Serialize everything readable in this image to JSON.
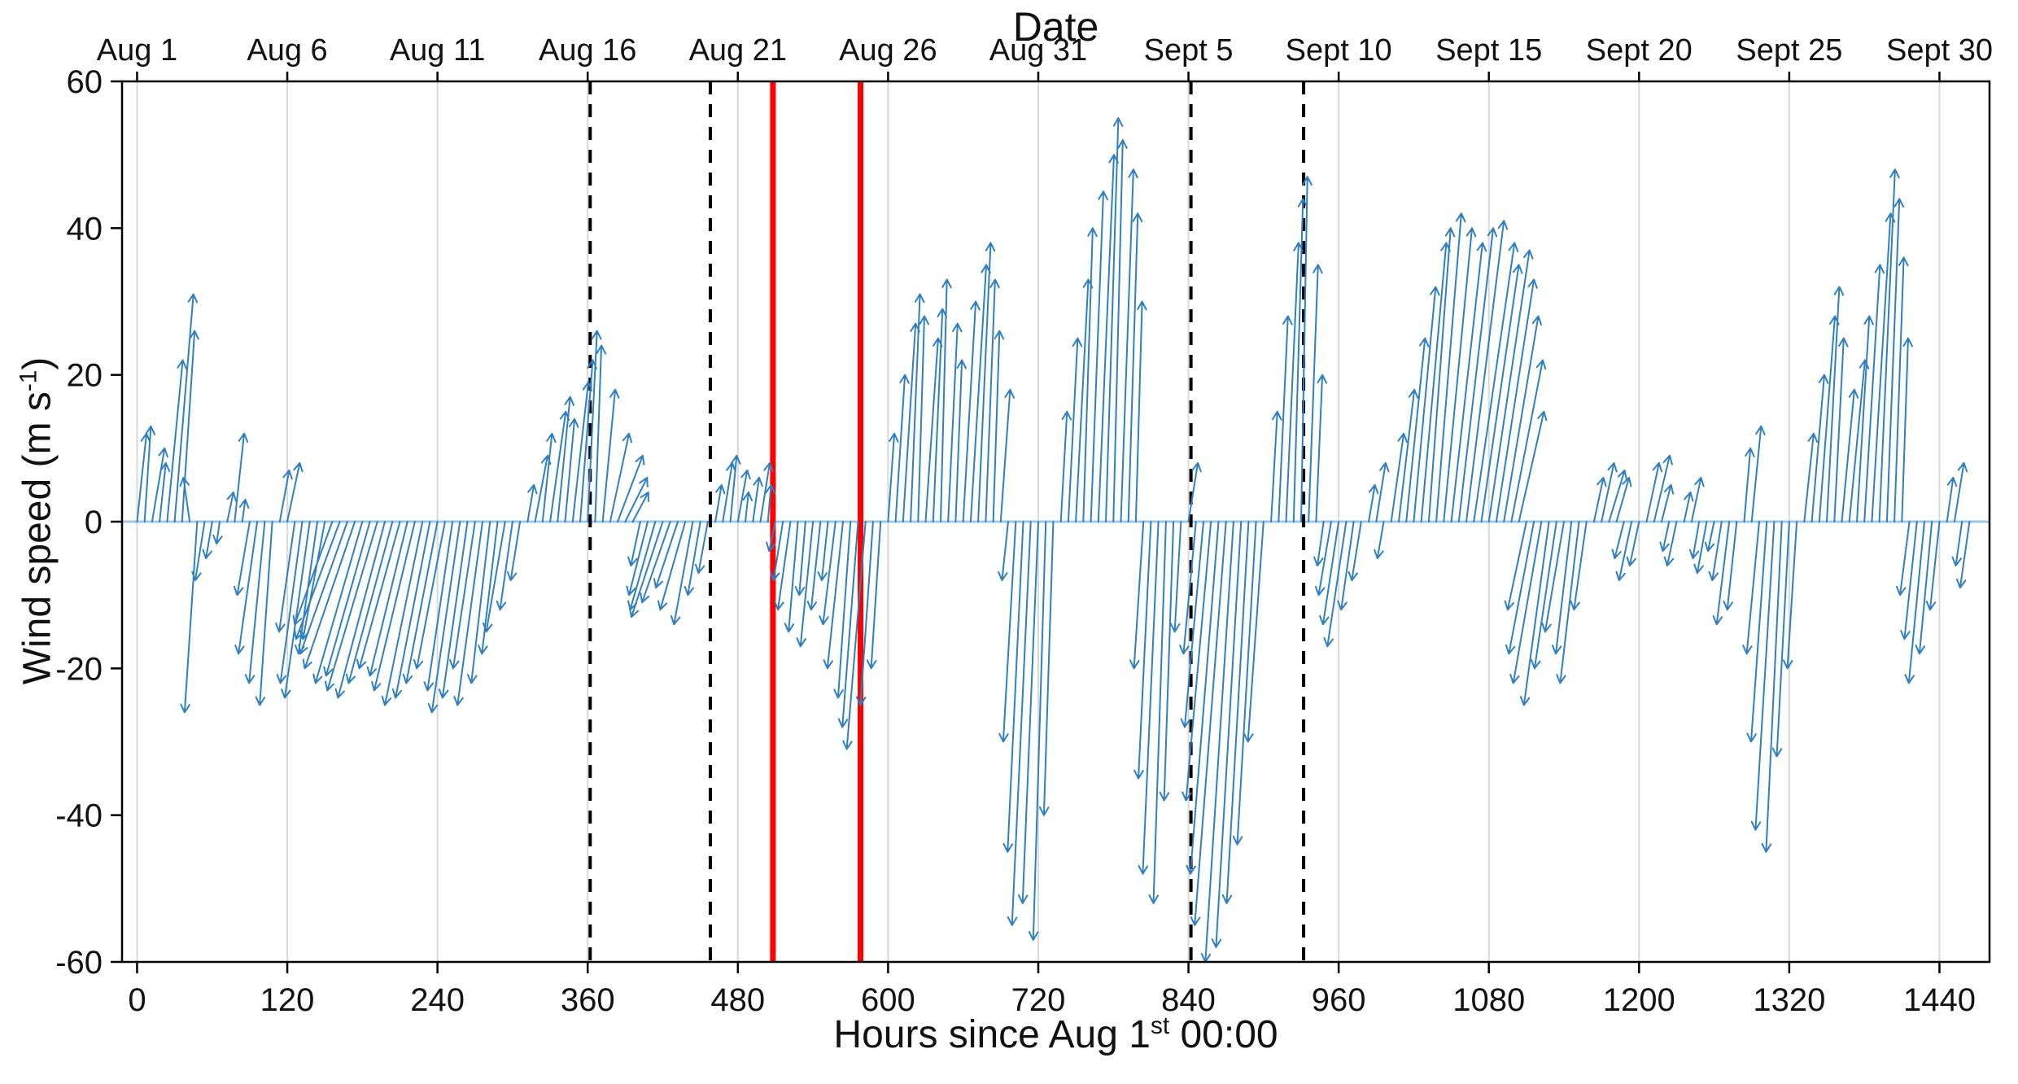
{
  "chart_data": {
    "type": "quiver",
    "title": "Date",
    "xlabel": "Hours since Aug 1st 00:00",
    "ylabel": "Wind speed (m s-1)",
    "labels": {
      "title_top": "Date",
      "xlabel_parts": {
        "pre": "Hours since Aug 1",
        "sup": "st",
        "post": " 00:00"
      },
      "ylabel_parts": {
        "pre": "Wind speed (m s",
        "sup": "-1",
        "post": ")"
      }
    },
    "xlim": [
      -12,
      1480
    ],
    "ylim": [
      -60,
      60
    ],
    "y_ticks": [
      -60,
      -40,
      -20,
      0,
      20,
      40,
      60
    ],
    "x_ticks_bottom": [
      0,
      120,
      240,
      360,
      480,
      600,
      720,
      840,
      960,
      1080,
      1200,
      1320,
      1440
    ],
    "x_ticks_top": [
      {
        "hour": 0,
        "label": "Aug 1"
      },
      {
        "hour": 120,
        "label": "Aug 6"
      },
      {
        "hour": 240,
        "label": "Aug 11"
      },
      {
        "hour": 360,
        "label": "Aug 16"
      },
      {
        "hour": 480,
        "label": "Aug 21"
      },
      {
        "hour": 600,
        "label": "Aug 26"
      },
      {
        "hour": 720,
        "label": "Aug 31"
      },
      {
        "hour": 840,
        "label": "Sept 5"
      },
      {
        "hour": 960,
        "label": "Sept 10"
      },
      {
        "hour": 1080,
        "label": "Sept 15"
      },
      {
        "hour": 1200,
        "label": "Sept 20"
      },
      {
        "hour": 1320,
        "label": "Sept 25"
      },
      {
        "hour": 1440,
        "label": "Sept 30"
      }
    ],
    "grid": {
      "vertical": true,
      "color": "#d9d9d9"
    },
    "axis_color": "#000000",
    "vector_color": "#2f7fc1",
    "baseline_color": "#9ec8e8",
    "u_scale_hours_per_ms": 2.5,
    "reference_lines": [
      {
        "x": 362,
        "style": "dashed",
        "color": "#000000"
      },
      {
        "x": 458,
        "style": "dashed",
        "color": "#000000"
      },
      {
        "x": 508,
        "style": "solid",
        "color": "#ff0000"
      },
      {
        "x": 578,
        "style": "solid",
        "color": "#ff0000"
      },
      {
        "x": 842,
        "style": "dashed",
        "color": "#000000"
      },
      {
        "x": 932,
        "style": "dashed",
        "color": "#000000"
      }
    ],
    "vectors": [
      [
        0,
        3,
        12
      ],
      [
        6,
        2,
        13
      ],
      [
        12,
        4,
        10
      ],
      [
        18,
        2,
        8
      ],
      [
        24,
        5,
        22
      ],
      [
        30,
        6,
        31
      ],
      [
        36,
        4,
        26
      ],
      [
        42,
        -2,
        6
      ],
      [
        48,
        -4,
        -26
      ],
      [
        54,
        -3,
        -8
      ],
      [
        60,
        -2,
        -5
      ],
      [
        66,
        -1,
        -3
      ],
      [
        72,
        2,
        4
      ],
      [
        78,
        3,
        12
      ],
      [
        84,
        1,
        3
      ],
      [
        90,
        -4,
        -10
      ],
      [
        96,
        -6,
        -18
      ],
      [
        102,
        -5,
        -22
      ],
      [
        108,
        -4,
        -25
      ],
      [
        114,
        3,
        7
      ],
      [
        120,
        4,
        8
      ],
      [
        126,
        -5,
        -15
      ],
      [
        132,
        -7,
        -22
      ],
      [
        138,
        -8,
        -24
      ],
      [
        144,
        -6,
        -18
      ],
      [
        150,
        -7,
        -16
      ],
      [
        156,
        -12,
        -14
      ],
      [
        162,
        -14,
        -16
      ],
      [
        168,
        -15,
        -18
      ],
      [
        174,
        -16,
        -20
      ],
      [
        180,
        -15,
        -22
      ],
      [
        186,
        -14,
        -21
      ],
      [
        192,
        -16,
        -23
      ],
      [
        198,
        -15,
        -24
      ],
      [
        204,
        -14,
        -22
      ],
      [
        210,
        -13,
        -20
      ],
      [
        216,
        -12,
        -21
      ],
      [
        222,
        -13,
        -23
      ],
      [
        228,
        -12,
        -25
      ],
      [
        234,
        -11,
        -24
      ],
      [
        240,
        -10,
        -22
      ],
      [
        246,
        -9,
        -20
      ],
      [
        252,
        -8,
        -23
      ],
      [
        258,
        -9,
        -26
      ],
      [
        264,
        -8,
        -24
      ],
      [
        270,
        -7,
        -20
      ],
      [
        276,
        -8,
        -25
      ],
      [
        282,
        -6,
        -22
      ],
      [
        288,
        -5,
        -18
      ],
      [
        294,
        -6,
        -15
      ],
      [
        300,
        -4,
        -12
      ],
      [
        306,
        -3,
        -8
      ],
      [
        312,
        2,
        5
      ],
      [
        318,
        4,
        9
      ],
      [
        324,
        3,
        12
      ],
      [
        330,
        5,
        15
      ],
      [
        336,
        4,
        17
      ],
      [
        342,
        3,
        14
      ],
      [
        348,
        5,
        19
      ],
      [
        354,
        4,
        22
      ],
      [
        360,
        3,
        26
      ],
      [
        366,
        2,
        24
      ],
      [
        372,
        4,
        18
      ],
      [
        378,
        6,
        12
      ],
      [
        384,
        8,
        9
      ],
      [
        390,
        7,
        6
      ],
      [
        396,
        5,
        4
      ],
      [
        402,
        -3,
        -6
      ],
      [
        408,
        -6,
        -10
      ],
      [
        414,
        -8,
        -12
      ],
      [
        420,
        -10,
        -13
      ],
      [
        426,
        -9,
        -11
      ],
      [
        432,
        -7,
        -9
      ],
      [
        438,
        -8,
        -12
      ],
      [
        444,
        -6,
        -14
      ],
      [
        450,
        -4,
        -10
      ],
      [
        456,
        -3,
        -7
      ],
      [
        462,
        2,
        5
      ],
      [
        468,
        3,
        8
      ],
      [
        474,
        2,
        9
      ],
      [
        480,
        3,
        7
      ],
      [
        486,
        1,
        4
      ],
      [
        492,
        2,
        6
      ],
      [
        498,
        3,
        8
      ],
      [
        504,
        1,
        5
      ],
      [
        510,
        -2,
        -4
      ],
      [
        516,
        -3,
        -8
      ],
      [
        522,
        -4,
        -12
      ],
      [
        528,
        -3,
        -15
      ],
      [
        534,
        -2,
        -10
      ],
      [
        540,
        -4,
        -17
      ],
      [
        546,
        -3,
        -12
      ],
      [
        552,
        -2,
        -8
      ],
      [
        558,
        -4,
        -14
      ],
      [
        564,
        -5,
        -20
      ],
      [
        570,
        -4,
        -24
      ],
      [
        576,
        -5,
        -28
      ],
      [
        582,
        -6,
        -31
      ],
      [
        588,
        -4,
        -25
      ],
      [
        594,
        -3,
        -20
      ],
      [
        600,
        2,
        12
      ],
      [
        606,
        3,
        20
      ],
      [
        612,
        4,
        27
      ],
      [
        618,
        3,
        31
      ],
      [
        624,
        2,
        28
      ],
      [
        630,
        4,
        25
      ],
      [
        636,
        3,
        29
      ],
      [
        642,
        2,
        33
      ],
      [
        648,
        3,
        27
      ],
      [
        654,
        2,
        22
      ],
      [
        660,
        4,
        30
      ],
      [
        666,
        5,
        35
      ],
      [
        672,
        4,
        38
      ],
      [
        678,
        3,
        33
      ],
      [
        684,
        2,
        26
      ],
      [
        690,
        3,
        18
      ],
      [
        696,
        -2,
        -8
      ],
      [
        702,
        -4,
        -30
      ],
      [
        708,
        -5,
        -45
      ],
      [
        714,
        -6,
        -55
      ],
      [
        720,
        -5,
        -52
      ],
      [
        726,
        -4,
        -57
      ],
      [
        732,
        -3,
        -40
      ],
      [
        738,
        2,
        15
      ],
      [
        744,
        3,
        25
      ],
      [
        750,
        4,
        33
      ],
      [
        756,
        3,
        40
      ],
      [
        762,
        4,
        45
      ],
      [
        768,
        5,
        50
      ],
      [
        774,
        4,
        55
      ],
      [
        780,
        3,
        52
      ],
      [
        786,
        4,
        48
      ],
      [
        792,
        3,
        42
      ],
      [
        798,
        2,
        30
      ],
      [
        804,
        -3,
        -20
      ],
      [
        810,
        -4,
        -35
      ],
      [
        816,
        -5,
        -48
      ],
      [
        822,
        -4,
        -52
      ],
      [
        828,
        -3,
        -38
      ],
      [
        834,
        -2,
        -15
      ],
      [
        840,
        3,
        8
      ],
      [
        846,
        -4,
        -18
      ],
      [
        852,
        -6,
        -28
      ],
      [
        858,
        -8,
        -38
      ],
      [
        864,
        -9,
        -48
      ],
      [
        870,
        -10,
        -55
      ],
      [
        876,
        -9,
        -60
      ],
      [
        882,
        -8,
        -58
      ],
      [
        888,
        -7,
        -52
      ],
      [
        894,
        -6,
        -44
      ],
      [
        900,
        -5,
        -30
      ],
      [
        906,
        2,
        15
      ],
      [
        912,
        3,
        28
      ],
      [
        918,
        4,
        38
      ],
      [
        924,
        3,
        44
      ],
      [
        930,
        2,
        47
      ],
      [
        936,
        3,
        35
      ],
      [
        942,
        2,
        20
      ],
      [
        948,
        -2,
        -6
      ],
      [
        954,
        -4,
        -10
      ],
      [
        960,
        -5,
        -14
      ],
      [
        966,
        -6,
        -17
      ],
      [
        972,
        -4,
        -12
      ],
      [
        978,
        -3,
        -8
      ],
      [
        984,
        2,
        5
      ],
      [
        990,
        3,
        8
      ],
      [
        996,
        -2,
        -5
      ],
      [
        1002,
        4,
        12
      ],
      [
        1008,
        5,
        18
      ],
      [
        1014,
        6,
        25
      ],
      [
        1020,
        7,
        32
      ],
      [
        1026,
        8,
        38
      ],
      [
        1032,
        7,
        40
      ],
      [
        1038,
        8,
        42
      ],
      [
        1044,
        9,
        40
      ],
      [
        1050,
        10,
        38
      ],
      [
        1056,
        11,
        40
      ],
      [
        1062,
        12,
        41
      ],
      [
        1068,
        13,
        38
      ],
      [
        1074,
        12,
        35
      ],
      [
        1080,
        13,
        37
      ],
      [
        1086,
        12,
        33
      ],
      [
        1092,
        11,
        28
      ],
      [
        1098,
        10,
        22
      ],
      [
        1104,
        8,
        15
      ],
      [
        1110,
        -6,
        -12
      ],
      [
        1116,
        -8,
        -18
      ],
      [
        1122,
        -9,
        -22
      ],
      [
        1128,
        -8,
        -25
      ],
      [
        1134,
        -7,
        -20
      ],
      [
        1140,
        -6,
        -15
      ],
      [
        1146,
        -5,
        -18
      ],
      [
        1152,
        -6,
        -22
      ],
      [
        1158,
        -4,
        -12
      ],
      [
        1164,
        3,
        6
      ],
      [
        1170,
        4,
        8
      ],
      [
        1176,
        5,
        7
      ],
      [
        1182,
        4,
        6
      ],
      [
        1188,
        -3,
        -5
      ],
      [
        1194,
        -4,
        -8
      ],
      [
        1200,
        -3,
        -6
      ],
      [
        1206,
        4,
        8
      ],
      [
        1212,
        5,
        9
      ],
      [
        1218,
        3,
        5
      ],
      [
        1224,
        -2,
        -4
      ],
      [
        1230,
        -3,
        -6
      ],
      [
        1236,
        2,
        4
      ],
      [
        1242,
        3,
        6
      ],
      [
        1248,
        -2,
        -5
      ],
      [
        1254,
        -3,
        -7
      ],
      [
        1260,
        -2,
        -4
      ],
      [
        1266,
        -3,
        -8
      ],
      [
        1272,
        -4,
        -14
      ],
      [
        1278,
        -3,
        -12
      ],
      [
        1284,
        2,
        10
      ],
      [
        1290,
        3,
        13
      ],
      [
        1296,
        -4,
        -18
      ],
      [
        1302,
        -5,
        -30
      ],
      [
        1308,
        -6,
        -42
      ],
      [
        1314,
        -5,
        -45
      ],
      [
        1320,
        -4,
        -32
      ],
      [
        1326,
        -3,
        -20
      ],
      [
        1332,
        3,
        12
      ],
      [
        1338,
        4,
        20
      ],
      [
        1344,
        5,
        28
      ],
      [
        1350,
        4,
        32
      ],
      [
        1356,
        3,
        25
      ],
      [
        1362,
        4,
        18
      ],
      [
        1368,
        5,
        22
      ],
      [
        1374,
        4,
        28
      ],
      [
        1380,
        5,
        35
      ],
      [
        1386,
        6,
        42
      ],
      [
        1392,
        5,
        48
      ],
      [
        1398,
        4,
        44
      ],
      [
        1404,
        3,
        36
      ],
      [
        1410,
        2,
        25
      ],
      [
        1416,
        -3,
        -10
      ],
      [
        1422,
        -4,
        -16
      ],
      [
        1428,
        -5,
        -22
      ],
      [
        1434,
        -4,
        -18
      ],
      [
        1440,
        -3,
        -12
      ],
      [
        1446,
        2,
        6
      ],
      [
        1452,
        3,
        8
      ],
      [
        1458,
        -2,
        -6
      ],
      [
        1464,
        -3,
        -9
      ]
    ]
  }
}
